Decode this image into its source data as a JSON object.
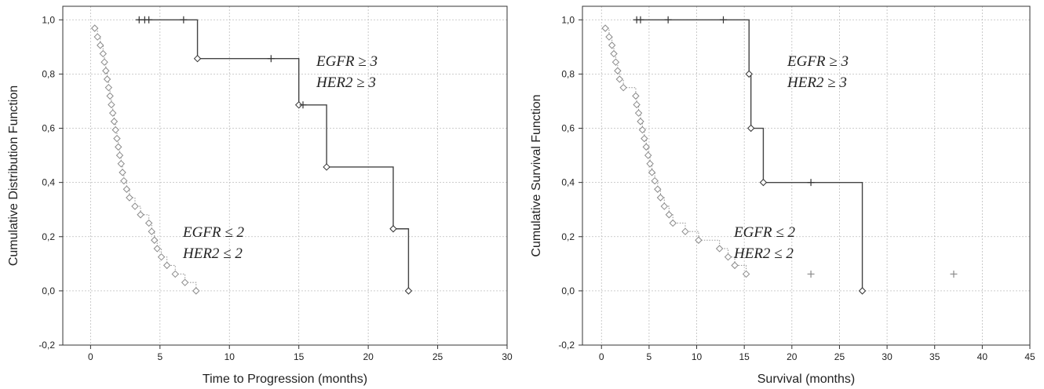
{
  "chart_data": [
    {
      "type": "line",
      "xlabel": "Time to Progression (months)",
      "ylabel": "Cumulative Distribution Function",
      "xlim": [
        -2,
        30
      ],
      "ylim": [
        -0.2,
        1.05
      ],
      "x_ticks": [
        "0",
        "5",
        "10",
        "15",
        "20",
        "25",
        "30"
      ],
      "y_ticks": [
        "-0,2",
        "0,0",
        "0,2",
        "0,4",
        "0,6",
        "0,8",
        "1,0"
      ],
      "grid": true,
      "series": [
        {
          "label_lines": [
            "EGFR ≥ 3",
            "HER2 ≥ 3"
          ],
          "style": "solid",
          "color": "#444444",
          "steps": [
            [
              3.4,
              1.0
            ],
            [
              7.7,
              0.857
            ],
            [
              15.0,
              0.686
            ],
            [
              17.0,
              0.457
            ],
            [
              21.8,
              0.229
            ],
            [
              22.9,
              0.0
            ]
          ],
          "events": [
            [
              7.7,
              0.857
            ],
            [
              15.0,
              0.686
            ],
            [
              17.0,
              0.457
            ],
            [
              21.8,
              0.229
            ],
            [
              22.9,
              0.0
            ]
          ],
          "censored": [
            [
              3.5,
              1.0
            ],
            [
              3.9,
              1.0
            ],
            [
              4.2,
              1.0
            ],
            [
              6.7,
              1.0
            ],
            [
              13.0,
              0.857
            ],
            [
              15.3,
              0.686
            ]
          ]
        },
        {
          "label_lines": [
            "EGFR ≤ 2",
            "HER2 ≤ 2"
          ],
          "style": "dotted",
          "color": "#9a9a9a",
          "steps": [
            [
              0.3,
              0.969
            ],
            [
              0.5,
              0.937
            ],
            [
              0.7,
              0.906
            ],
            [
              0.9,
              0.875
            ],
            [
              1.0,
              0.844
            ],
            [
              1.1,
              0.812
            ],
            [
              1.2,
              0.781
            ],
            [
              1.3,
              0.75
            ],
            [
              1.4,
              0.719
            ],
            [
              1.5,
              0.687
            ],
            [
              1.6,
              0.656
            ],
            [
              1.7,
              0.625
            ],
            [
              1.8,
              0.594
            ],
            [
              1.9,
              0.562
            ],
            [
              2.0,
              0.531
            ],
            [
              2.1,
              0.5
            ],
            [
              2.2,
              0.469
            ],
            [
              2.3,
              0.437
            ],
            [
              2.4,
              0.406
            ],
            [
              2.6,
              0.375
            ],
            [
              2.8,
              0.344
            ],
            [
              3.2,
              0.312
            ],
            [
              3.6,
              0.281
            ],
            [
              4.2,
              0.25
            ],
            [
              4.4,
              0.219
            ],
            [
              4.6,
              0.187
            ],
            [
              4.8,
              0.156
            ],
            [
              5.1,
              0.125
            ],
            [
              5.5,
              0.094
            ],
            [
              6.1,
              0.062
            ],
            [
              6.8,
              0.031
            ],
            [
              7.6,
              0.0
            ]
          ],
          "events": [
            [
              0.3,
              0.969
            ],
            [
              0.5,
              0.937
            ],
            [
              0.7,
              0.906
            ],
            [
              0.9,
              0.875
            ],
            [
              1.0,
              0.844
            ],
            [
              1.1,
              0.812
            ],
            [
              1.2,
              0.781
            ],
            [
              1.3,
              0.75
            ],
            [
              1.4,
              0.719
            ],
            [
              1.5,
              0.687
            ],
            [
              1.6,
              0.656
            ],
            [
              1.7,
              0.625
            ],
            [
              1.8,
              0.594
            ],
            [
              1.9,
              0.562
            ],
            [
              2.0,
              0.531
            ],
            [
              2.1,
              0.5
            ],
            [
              2.2,
              0.469
            ],
            [
              2.3,
              0.437
            ],
            [
              2.4,
              0.406
            ],
            [
              2.6,
              0.375
            ],
            [
              2.8,
              0.344
            ],
            [
              3.2,
              0.312
            ],
            [
              3.6,
              0.281
            ],
            [
              4.2,
              0.25
            ],
            [
              4.4,
              0.219
            ],
            [
              4.6,
              0.187
            ],
            [
              4.8,
              0.156
            ],
            [
              5.1,
              0.125
            ],
            [
              5.5,
              0.094
            ],
            [
              6.1,
              0.062
            ],
            [
              6.8,
              0.031
            ],
            [
              7.6,
              0.0
            ]
          ],
          "censored": []
        }
      ]
    },
    {
      "type": "line",
      "xlabel": "Survival (months)",
      "ylabel": "Cumulative Survival Function",
      "xlim": [
        -2,
        45
      ],
      "ylim": [
        -0.2,
        1.05
      ],
      "x_ticks": [
        "0",
        "5",
        "10",
        "15",
        "20",
        "25",
        "30",
        "35",
        "40",
        "45"
      ],
      "y_ticks": [
        "-0,2",
        "0,0",
        "0,2",
        "0,4",
        "0,6",
        "0,8",
        "1,0"
      ],
      "grid": true,
      "series": [
        {
          "label_lines": [
            "EGFR ≥ 3",
            "HER2 ≥ 3"
          ],
          "style": "solid",
          "color": "#444444",
          "steps": [
            [
              3.6,
              1.0
            ],
            [
              15.5,
              0.8
            ],
            [
              15.7,
              0.6
            ],
            [
              17.0,
              0.4
            ],
            [
              27.4,
              0.0
            ]
          ],
          "events": [
            [
              15.5,
              0.8
            ],
            [
              15.7,
              0.6
            ],
            [
              17.0,
              0.4
            ],
            [
              27.4,
              0.0
            ]
          ],
          "censored": [
            [
              3.7,
              1.0
            ],
            [
              4.1,
              1.0
            ],
            [
              7.0,
              1.0
            ],
            [
              12.8,
              1.0
            ],
            [
              22.0,
              0.4
            ]
          ]
        },
        {
          "label_lines": [
            "EGFR ≤ 2",
            "HER2 ≤ 2"
          ],
          "style": "dotted",
          "color": "#9a9a9a",
          "steps": [
            [
              0.4,
              0.969
            ],
            [
              0.8,
              0.937
            ],
            [
              1.1,
              0.906
            ],
            [
              1.3,
              0.875
            ],
            [
              1.5,
              0.844
            ],
            [
              1.7,
              0.812
            ],
            [
              1.9,
              0.781
            ],
            [
              2.3,
              0.75
            ],
            [
              3.6,
              0.719
            ],
            [
              3.7,
              0.687
            ],
            [
              3.9,
              0.656
            ],
            [
              4.1,
              0.625
            ],
            [
              4.3,
              0.594
            ],
            [
              4.5,
              0.562
            ],
            [
              4.7,
              0.531
            ],
            [
              4.9,
              0.5
            ],
            [
              5.1,
              0.469
            ],
            [
              5.3,
              0.437
            ],
            [
              5.6,
              0.406
            ],
            [
              5.9,
              0.375
            ],
            [
              6.2,
              0.344
            ],
            [
              6.6,
              0.312
            ],
            [
              7.1,
              0.281
            ],
            [
              7.5,
              0.25
            ],
            [
              8.8,
              0.219
            ],
            [
              10.2,
              0.187
            ],
            [
              12.4,
              0.156
            ],
            [
              13.3,
              0.125
            ],
            [
              14.0,
              0.094
            ],
            [
              15.2,
              0.062
            ]
          ],
          "events": [
            [
              0.4,
              0.969
            ],
            [
              0.8,
              0.937
            ],
            [
              1.1,
              0.906
            ],
            [
              1.3,
              0.875
            ],
            [
              1.5,
              0.844
            ],
            [
              1.7,
              0.812
            ],
            [
              1.9,
              0.781
            ],
            [
              2.3,
              0.75
            ],
            [
              3.6,
              0.719
            ],
            [
              3.7,
              0.687
            ],
            [
              3.9,
              0.656
            ],
            [
              4.1,
              0.625
            ],
            [
              4.3,
              0.594
            ],
            [
              4.5,
              0.562
            ],
            [
              4.7,
              0.531
            ],
            [
              4.9,
              0.5
            ],
            [
              5.1,
              0.469
            ],
            [
              5.3,
              0.437
            ],
            [
              5.6,
              0.406
            ],
            [
              5.9,
              0.375
            ],
            [
              6.2,
              0.344
            ],
            [
              6.6,
              0.312
            ],
            [
              7.1,
              0.281
            ],
            [
              7.5,
              0.25
            ],
            [
              8.8,
              0.219
            ],
            [
              10.2,
              0.187
            ],
            [
              12.4,
              0.156
            ],
            [
              13.3,
              0.125
            ],
            [
              14.0,
              0.094
            ],
            [
              15.2,
              0.062
            ]
          ],
          "censored": [
            [
              22.0,
              0.062
            ],
            [
              37.0,
              0.062
            ]
          ]
        }
      ]
    }
  ]
}
